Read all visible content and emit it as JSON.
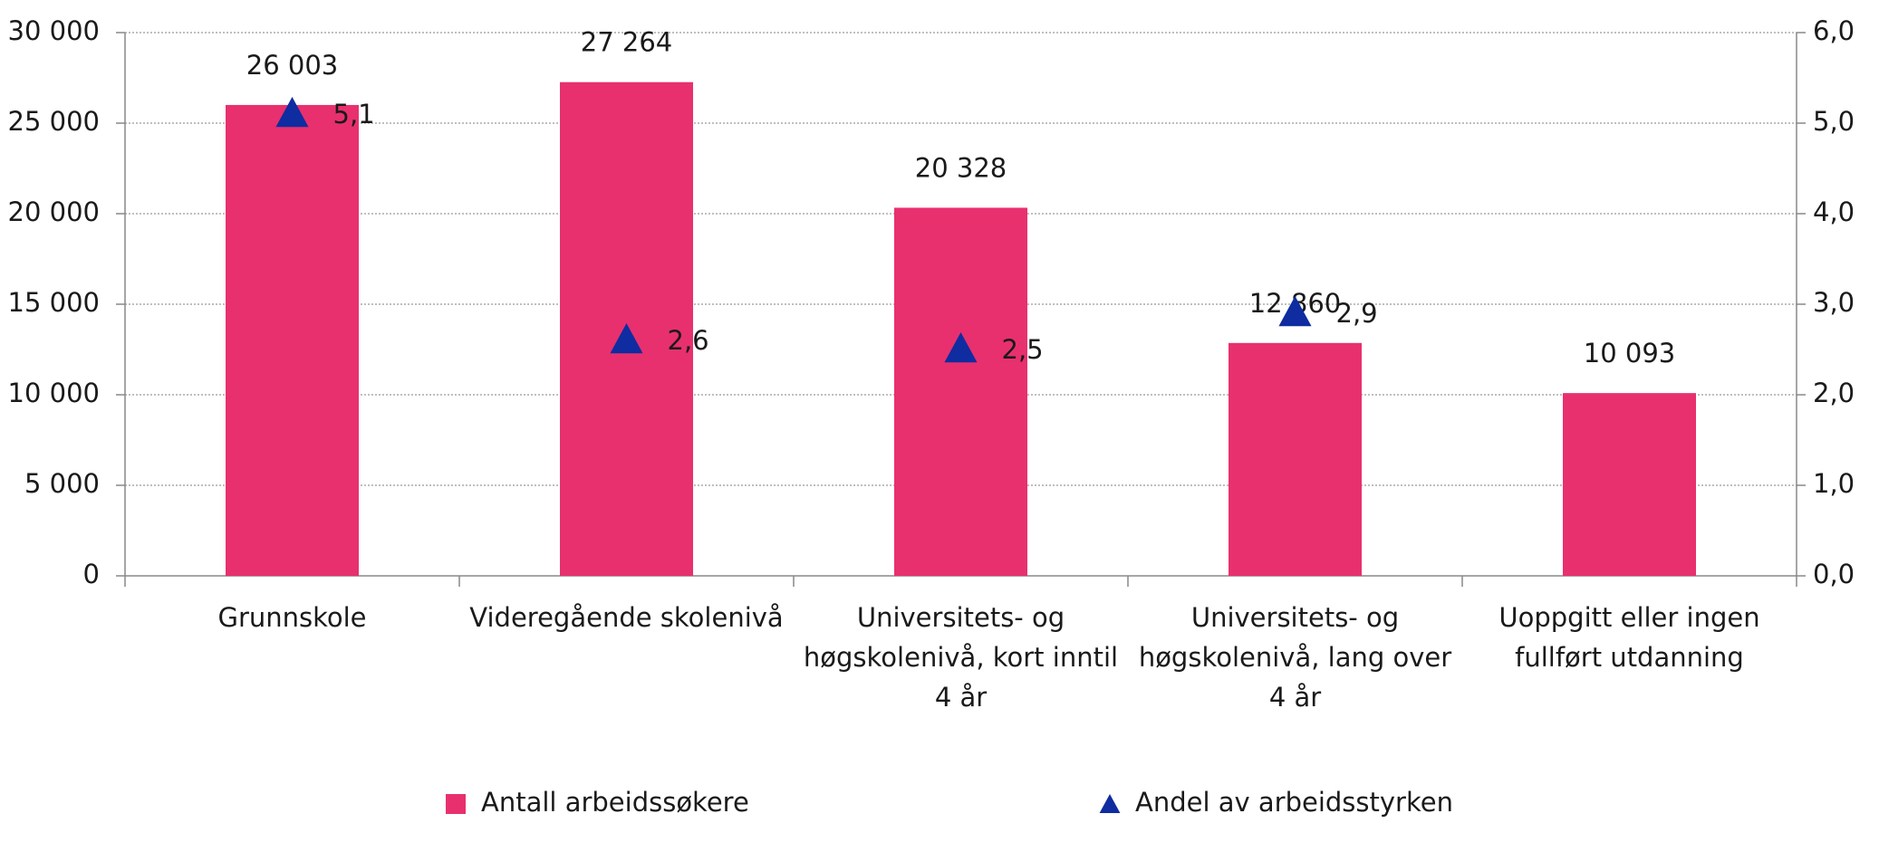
{
  "chart_data": {
    "type": "bar",
    "categories": [
      "Grunnskole",
      "Videregående skolenivå",
      "Universitets- og høgskolenivå, kort inntil 4 år",
      "Universitets- og høgskolenivå, lang over 4 år",
      "Uoppgitt eller ingen fullført utdanning"
    ],
    "series": [
      {
        "name": "Antall arbeidssøkere",
        "type": "bar",
        "color": "#e8306f",
        "values": [
          26003,
          27264,
          20328,
          12860,
          10093
        ],
        "value_labels": [
          "26 003",
          "27 264",
          "20 328",
          "12 860",
          "10 093"
        ]
      },
      {
        "name": "Andel av arbeidsstyrken",
        "type": "triangle",
        "axis": "y2",
        "color": "#0f2ca0",
        "values": [
          5.1,
          2.6,
          2.5,
          2.9,
          null
        ],
        "value_labels": [
          "5,1",
          "2,6",
          "2,5",
          "2,9",
          null
        ]
      }
    ],
    "ylim": [
      0,
      30000
    ],
    "yticks": [
      0,
      {
        "value": 5000,
        "label": "5 000"
      },
      {
        "value": 10000,
        "label": "10 000"
      },
      {
        "value": 15000,
        "label": "15 000"
      },
      {
        "value": 20000,
        "label": "20 000"
      },
      {
        "value": 25000,
        "label": "25 000"
      },
      {
        "value": 30000,
        "label": "30 000"
      }
    ],
    "y2lim": [
      0,
      6
    ],
    "y2ticks": [
      {
        "value": 0,
        "label": "0,0"
      },
      {
        "value": 1,
        "label": "1,0"
      },
      {
        "value": 2,
        "label": "2,0"
      },
      {
        "value": 3,
        "label": "3,0"
      },
      {
        "value": 4,
        "label": "4,0"
      },
      {
        "value": 5,
        "label": "5,0"
      },
      {
        "value": 6,
        "label": "6,0"
      }
    ],
    "grid": true,
    "legend": "bottom"
  }
}
